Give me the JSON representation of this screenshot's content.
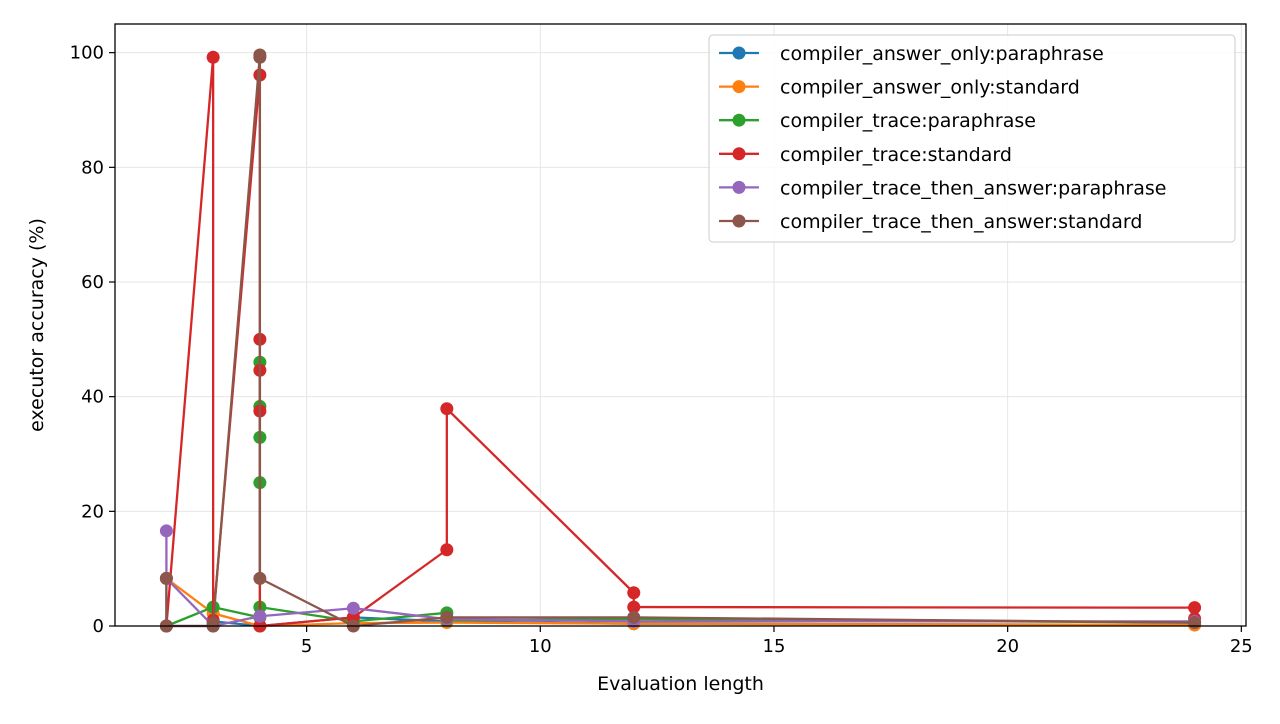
{
  "chart_data": {
    "type": "line",
    "title": "",
    "xlabel": "Evaluation length",
    "ylabel": "executor accuracy (%)",
    "xlim": [
      0.9,
      25.1
    ],
    "ylim": [
      0,
      105
    ],
    "xticks": [
      5,
      10,
      15,
      20,
      25
    ],
    "yticks": [
      0,
      20,
      40,
      60,
      80,
      100
    ],
    "grid": true,
    "legend_position": "upper-right",
    "series": [
      {
        "name": "compiler_answer_only:paraphrase",
        "color": "#1f77b4",
        "points": [
          [
            2,
            8.3
          ],
          [
            2,
            0
          ],
          [
            3,
            0
          ],
          [
            3,
            0.8
          ],
          [
            4,
            0
          ],
          [
            6,
            1.5
          ],
          [
            8,
            0.8
          ],
          [
            12,
            0.4
          ],
          [
            24,
            0.2
          ]
        ]
      },
      {
        "name": "compiler_answer_only:standard",
        "color": "#ff7f0e",
        "points": [
          [
            2,
            8.3
          ],
          [
            3,
            2.2
          ],
          [
            4,
            0
          ],
          [
            6,
            0.5
          ],
          [
            8,
            0.6
          ],
          [
            12,
            0.4
          ],
          [
            24,
            0.2
          ]
        ]
      },
      {
        "name": "compiler_trace:paraphrase",
        "color": "#2ca02c",
        "points": [
          [
            2,
            0
          ],
          [
            3,
            3.3
          ],
          [
            4,
            1.5
          ],
          [
            4,
            25.0
          ],
          [
            4,
            32.9
          ],
          [
            4,
            38.3
          ],
          [
            4,
            46.0
          ],
          [
            4,
            3.3
          ],
          [
            6,
            0.8
          ],
          [
            8,
            2.3
          ],
          [
            8,
            1.0
          ],
          [
            12,
            1.2
          ],
          [
            24,
            0.6
          ]
        ]
      },
      {
        "name": "compiler_trace:standard",
        "color": "#d62728",
        "points": [
          [
            2,
            0
          ],
          [
            3,
            99.2
          ],
          [
            3,
            1.0
          ],
          [
            4,
            96.1
          ],
          [
            4,
            50.0
          ],
          [
            4,
            44.6
          ],
          [
            4,
            37.5
          ],
          [
            4,
            0
          ],
          [
            6,
            1.5
          ],
          [
            8,
            13.3
          ],
          [
            8,
            37.9
          ],
          [
            12,
            5.8
          ],
          [
            12,
            3.3
          ],
          [
            24,
            3.2
          ],
          [
            24,
            1.3
          ]
        ]
      },
      {
        "name": "compiler_trace_then_answer:paraphrase",
        "color": "#9467bd",
        "points": [
          [
            2,
            16.6
          ],
          [
            2,
            8.3
          ],
          [
            3,
            0
          ],
          [
            4,
            1.7
          ],
          [
            6,
            3.1
          ],
          [
            8,
            1.2
          ],
          [
            12,
            0.8
          ],
          [
            24,
            0.8
          ]
        ]
      },
      {
        "name": "compiler_trace_then_answer:standard",
        "color": "#8c564b",
        "points": [
          [
            2,
            8.3
          ],
          [
            2,
            0
          ],
          [
            3,
            0
          ],
          [
            3,
            0.5
          ],
          [
            4,
            99.6
          ],
          [
            4,
            99.2
          ],
          [
            4,
            8.3
          ],
          [
            6,
            0
          ],
          [
            8,
            1.5
          ],
          [
            12,
            1.5
          ],
          [
            24,
            0.6
          ]
        ]
      }
    ]
  }
}
